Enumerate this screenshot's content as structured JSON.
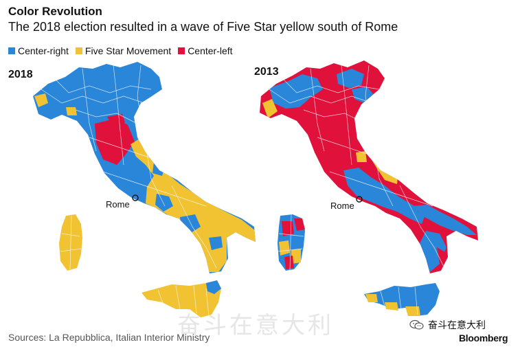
{
  "header": {
    "title": "Color Revolution",
    "subtitle": "The 2018 election resulted in a wave of Five Star yellow south of Rome"
  },
  "legend": [
    {
      "label": "Center-right",
      "color": "#2a86d9"
    },
    {
      "label": "Five Star Movement",
      "color": "#f1c232"
    },
    {
      "label": "Center-left",
      "color": "#e0113a"
    }
  ],
  "maps": [
    {
      "year": "2018",
      "city_label": "Rome"
    },
    {
      "year": "2013",
      "city_label": "Rome"
    }
  ],
  "footer": {
    "source": "Sources: La Repubblica, Italian Interior Ministry",
    "watermark": "奋斗在意大利",
    "wechat_label": "奋斗在意大利",
    "brand": "Bloomberg"
  },
  "colors": {
    "center_right": "#2a86d9",
    "five_star": "#f1c232",
    "center_left": "#e0113a",
    "border": "#ffffff"
  },
  "icons": [
    "legend-swatch",
    "rome-marker-icon",
    "wechat-icon"
  ]
}
